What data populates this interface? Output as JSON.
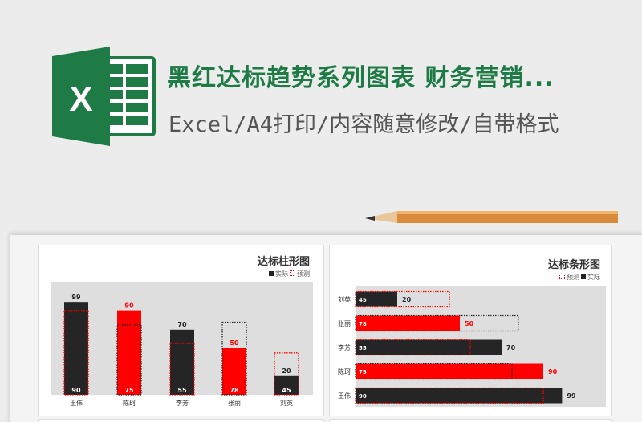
{
  "header": {
    "title": "黑红达标趋势系列图表 财务营销...",
    "subtitle": "Excel/A4打印/内容随意修改/自带格式",
    "icon": "excel-icon",
    "brand_color": "#1e7b46"
  },
  "colors": {
    "black": "#252525",
    "red": "#ff0000",
    "plot_bg": "#dedede"
  },
  "chart_data": [
    {
      "type": "bar",
      "orientation": "vertical",
      "title": "达标柱形图",
      "legend": [
        "实际",
        "预测"
      ],
      "legend_placement": "top-right",
      "categories": [
        "王伟",
        "陈珂",
        "李芳",
        "张丽",
        "刘英"
      ],
      "series": [
        {
          "name": "实际",
          "values": [
            99,
            90,
            70,
            50,
            20
          ],
          "colors": [
            "#252525",
            "#ff0000",
            "#252525",
            "#ff0000",
            "#252525"
          ]
        },
        {
          "name": "预测",
          "values": [
            90,
            75,
            55,
            78,
            45
          ]
        }
      ]
    },
    {
      "type": "bar",
      "orientation": "horizontal",
      "title": "达标条形图",
      "legend": [
        "预测",
        "实际"
      ],
      "legend_placement": "top-right",
      "categories": [
        "刘英",
        "张丽",
        "李芳",
        "陈珂",
        "王伟"
      ],
      "series": [
        {
          "name": "实际",
          "values": [
            20,
            50,
            70,
            90,
            99
          ],
          "colors": [
            "#252525",
            "#ff0000",
            "#252525",
            "#ff0000",
            "#252525"
          ]
        },
        {
          "name": "预测",
          "values": [
            45,
            78,
            55,
            75,
            90
          ]
        }
      ]
    }
  ]
}
